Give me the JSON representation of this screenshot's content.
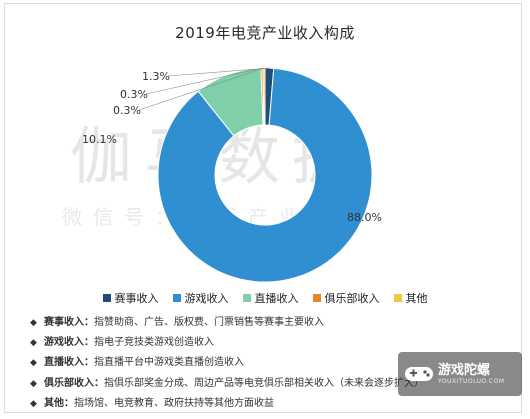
{
  "chart_data": {
    "type": "pie",
    "donut": true,
    "title": "2019年电竞产业收入构成",
    "series": [
      {
        "name": "赛事收入",
        "value": 1.3,
        "label": "1.3%",
        "color": "#1f4e79"
      },
      {
        "name": "游戏收入",
        "value": 88.0,
        "label": "88.0%",
        "color": "#2f8fd1"
      },
      {
        "name": "直播收入",
        "value": 10.1,
        "label": "10.1%",
        "color": "#7fd0a8"
      },
      {
        "name": "俱乐部收入",
        "value": 0.3,
        "label": "0.3%",
        "color": "#e8862b"
      },
      {
        "name": "其他",
        "value": 0.3,
        "label": "0.3%",
        "color": "#f2c73a"
      }
    ],
    "legend_position": "bottom"
  },
  "watermark": {
    "main": "伽马数据",
    "sub": "微信号：游戏产业报告"
  },
  "notes": [
    {
      "key": "赛事收入：",
      "text": "指赞助商、广告、版权费、门票销售等赛事主要收入"
    },
    {
      "key": "游戏收入：",
      "text": "指电子竞技类游戏创造收入"
    },
    {
      "key": "直播收入：",
      "text": "指直播平台中游戏类直播创造收入"
    },
    {
      "key": "俱乐部收入：",
      "text": "指俱乐部奖金分成、周边产品等电竞俱乐部相关收入（未来会逐步扩大）"
    },
    {
      "key": "其他：",
      "text": "指场馆、电竞教育、政府扶持等其他方面收益"
    }
  ],
  "bullet": "◆",
  "logo": {
    "icon": "game-controller-icon",
    "name": "游戏陀螺",
    "url_text": "YOUXITUOLUO.COM"
  }
}
